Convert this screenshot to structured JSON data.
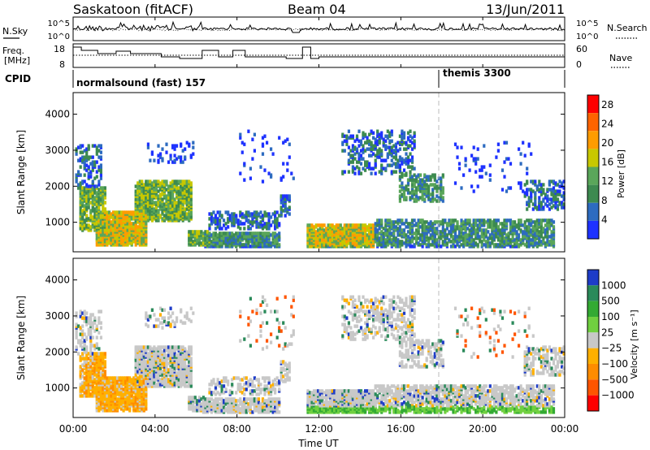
{
  "header": {
    "station": "Saskatoon (fitACF)",
    "beam": "Beam 04",
    "date": "13/Jun/2011"
  },
  "noise_panel": {
    "left_label": "N.Sky",
    "right_label": "N.Search",
    "left_ticks": [
      "10^5",
      "10^0"
    ],
    "right_ticks": [
      "10^5",
      "10^0"
    ]
  },
  "freq_panel": {
    "left_label_1": "Freq.",
    "left_label_2": "[MHz]",
    "right_label": "Nave",
    "left_ticks": [
      "18",
      "8"
    ],
    "right_ticks": [
      "60",
      "0"
    ]
  },
  "cpid": {
    "label": "CPID",
    "programs": [
      {
        "name": "normalsound (fast) 157",
        "start_hour": 0
      },
      {
        "name": "themis 3300",
        "start_hour": 18
      }
    ]
  },
  "colors": {
    "power": [
      "#1e32ff",
      "#2d6bc0",
      "#3d8a50",
      "#5aa65a",
      "#c8c800",
      "#ff9c00",
      "#ff6400",
      "#ff0000"
    ],
    "velocity": [
      "#1e3cc8",
      "#2a8a5a",
      "#33aa33",
      "#70d040",
      "#c8c8c8",
      "#ffb000",
      "#ff8c00",
      "#ff5500",
      "#ff0000"
    ]
  },
  "chart_data": [
    {
      "type": "heatmap",
      "title": "",
      "xlabel": "Time UT",
      "ylabel": "Slant Range [km]",
      "xlim": [
        0,
        24
      ],
      "ylim": [
        180,
        4600
      ],
      "x_ticks": [
        "00:00",
        "04:00",
        "08:00",
        "12:00",
        "16:00",
        "20:00",
        "00:00"
      ],
      "y_ticks": [
        "1000",
        "2000",
        "3000",
        "4000"
      ],
      "colorbar_label": "Power [dB]",
      "colorbar_ticks": [
        "4",
        "8",
        "12",
        "16",
        "20",
        "24",
        "28"
      ],
      "colorbar_range": [
        0,
        30
      ],
      "grid": false,
      "data_gap_hours": [
        10.7,
        11.1
      ]
    },
    {
      "type": "heatmap",
      "title": "",
      "xlabel": "Time UT",
      "ylabel": "Slant Range [km]",
      "xlim": [
        0,
        24
      ],
      "ylim": [
        180,
        4600
      ],
      "x_ticks": [
        "00:00",
        "04:00",
        "08:00",
        "12:00",
        "16:00",
        "20:00",
        "00:00"
      ],
      "y_ticks": [
        "1000",
        "2000",
        "3000",
        "4000"
      ],
      "colorbar_label": "Velocity [m s⁻¹]",
      "colorbar_ticks": [
        "1000",
        "500",
        "100",
        "25",
        "−25",
        "−100",
        "−500",
        "−1000"
      ],
      "grid": false,
      "data_gap_hours": [
        10.7,
        11.1
      ]
    }
  ]
}
